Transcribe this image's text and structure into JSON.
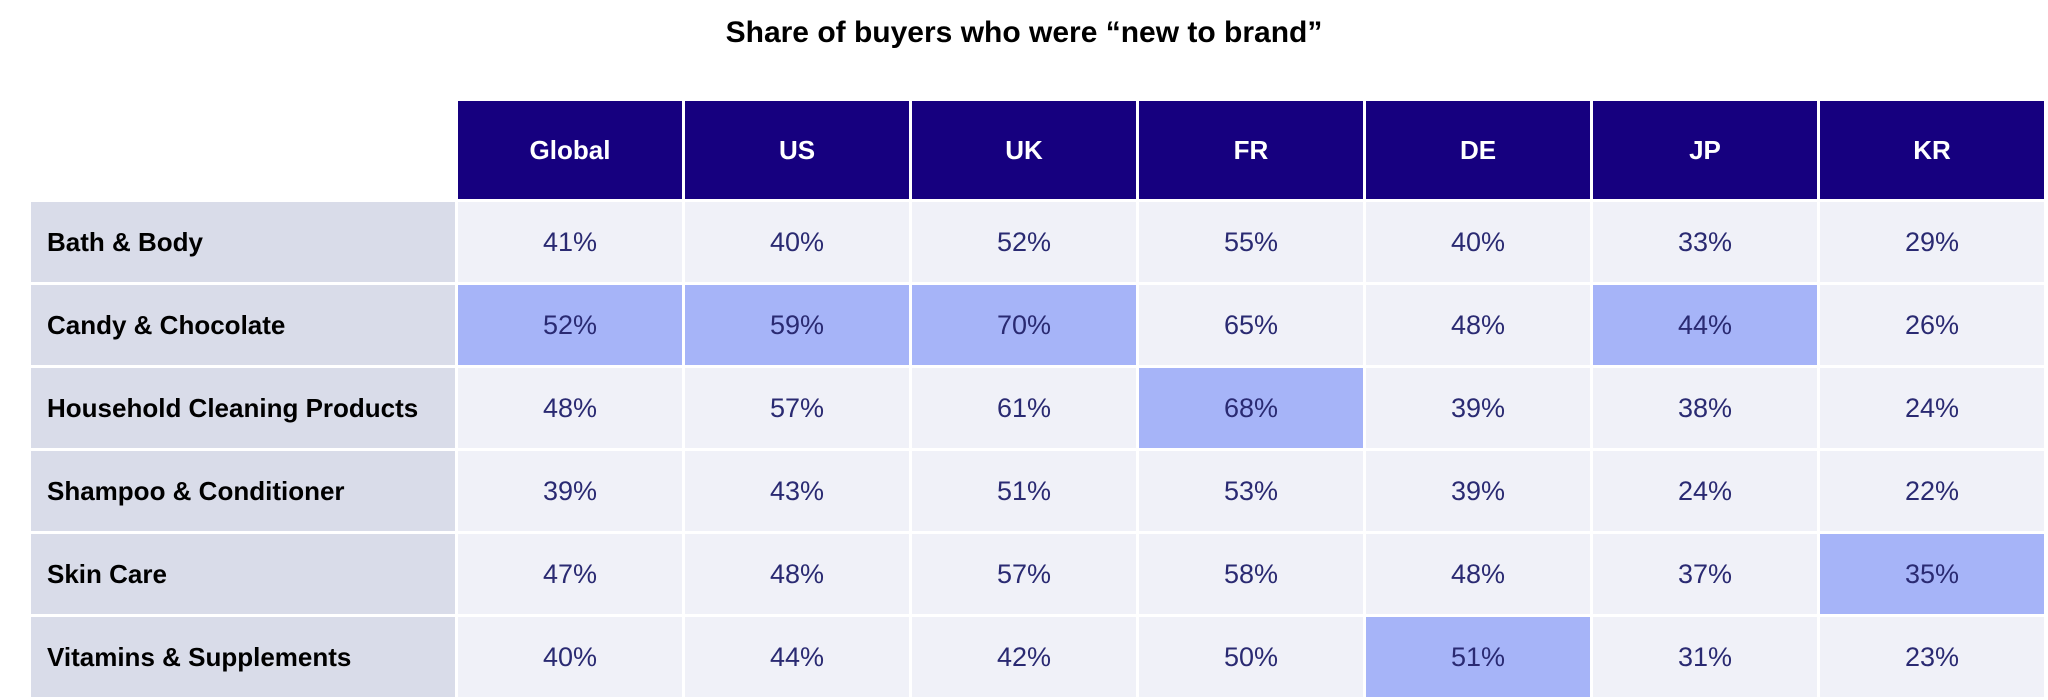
{
  "chart_data": {
    "type": "table",
    "title": "Share of buyers who were “new to brand”",
    "columns": [
      "Global",
      "US",
      "UK",
      "FR",
      "DE",
      "JP",
      "KR"
    ],
    "rows": [
      {
        "label": "Bath & Body",
        "values": [
          "41%",
          "40%",
          "52%",
          "55%",
          "40%",
          "33%",
          "29%"
        ],
        "highlighted": []
      },
      {
        "label": "Candy & Chocolate",
        "values": [
          "52%",
          "59%",
          "70%",
          "65%",
          "48%",
          "44%",
          "26%"
        ],
        "highlighted": [
          "Global",
          "US",
          "UK",
          "JP"
        ]
      },
      {
        "label": "Household Cleaning Products",
        "values": [
          "48%",
          "57%",
          "61%",
          "68%",
          "39%",
          "38%",
          "24%"
        ],
        "highlighted": [
          "FR"
        ]
      },
      {
        "label": "Shampoo & Conditioner",
        "values": [
          "39%",
          "43%",
          "51%",
          "53%",
          "39%",
          "24%",
          "22%"
        ],
        "highlighted": []
      },
      {
        "label": "Skin Care",
        "values": [
          "47%",
          "48%",
          "57%",
          "58%",
          "48%",
          "37%",
          "35%"
        ],
        "highlighted": [
          "KR"
        ]
      },
      {
        "label": "Vitamins & Supplements",
        "values": [
          "40%",
          "44%",
          "42%",
          "50%",
          "51%",
          "31%",
          "23%"
        ],
        "highlighted": [
          "DE"
        ]
      }
    ],
    "colors": {
      "header": "#16007f",
      "label_bg": "#d9dce9",
      "cell_bg": "#f0f1f8",
      "highlight": "#a6b4f8",
      "value_text": "#2a2a72"
    }
  }
}
